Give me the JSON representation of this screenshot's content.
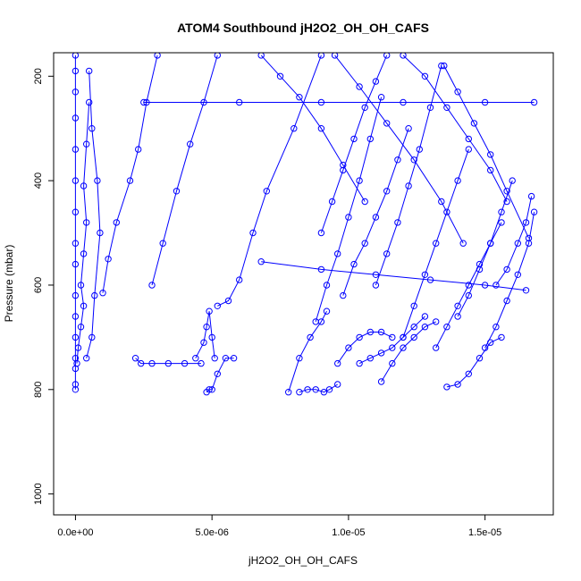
{
  "chart_data": {
    "type": "line",
    "title": "ATOM4 Southbound jH2O2_OH_OH_CAFS",
    "xlabel": "jH2O2_OH_OH_CAFS",
    "ylabel": "Pressure (mbar)",
    "xlim": [
      -8e-07,
      1.75e-05
    ],
    "ylim": [
      1040,
      155
    ],
    "y_reversed": true,
    "x_ticks": [
      0,
      5e-06,
      1e-05,
      1.5e-05
    ],
    "x_tick_labels": [
      "0.0e+00",
      "5.0e-06",
      "1.0e-05",
      "1.5e-05"
    ],
    "y_ticks": [
      200,
      400,
      600,
      800,
      1000
    ],
    "y_tick_labels": [
      "200",
      "400",
      "600",
      "800",
      "1000"
    ],
    "grid": false,
    "legend": "none",
    "color": "#0000ff",
    "marker": "open-circle",
    "series": [
      {
        "x": [
          0.0,
          0.0,
          0.0,
          0.0,
          0.0,
          0.0,
          0.0,
          0.0,
          0.0,
          0.0,
          0.0,
          0.0,
          0.0,
          0.0,
          0.0,
          0.0
        ],
        "y": [
          800,
          790,
          760,
          740,
          700,
          660,
          620,
          560,
          520,
          460,
          400,
          340,
          280,
          230,
          190,
          160
        ]
      },
      {
        "x": [
          5e-08,
          1e-07,
          2e-07,
          3e-07,
          2e-07,
          3e-07,
          4e-07,
          3e-07,
          4e-07,
          5e-07
        ],
        "y": [
          750,
          720,
          680,
          640,
          600,
          540,
          480,
          410,
          330,
          250
        ]
      },
      {
        "x": [
          4e-07,
          6e-07,
          7e-07,
          9e-07,
          8e-07,
          6e-07,
          5e-07
        ],
        "y": [
          740,
          700,
          620,
          500,
          400,
          300,
          190
        ]
      },
      {
        "x": [
          1e-06,
          1.2e-06,
          1.5e-06,
          2e-06,
          2.3e-06,
          2.6e-06,
          3e-06
        ],
        "y": [
          615,
          550,
          480,
          400,
          340,
          250,
          160
        ]
      },
      {
        "x": [
          2.2e-06,
          2.4e-06,
          2.8e-06,
          3.4e-06,
          4e-06,
          4.6e-06
        ],
        "y": [
          740,
          750,
          750,
          750,
          750,
          750
        ]
      },
      {
        "x": [
          2.8e-06,
          3.2e-06,
          3.7e-06,
          4.2e-06,
          4.7e-06,
          5.2e-06
        ],
        "y": [
          600,
          520,
          420,
          330,
          250,
          160
        ]
      },
      {
        "x": [
          4.4e-06,
          4.7e-06,
          4.8e-06,
          4.9e-06,
          5e-06,
          5.1e-06
        ],
        "y": [
          740,
          710,
          680,
          650,
          700,
          740
        ]
      },
      {
        "x": [
          4.8e-06,
          4.9e-06,
          5e-06,
          5.2e-06,
          5.5e-06,
          5.8e-06
        ],
        "y": [
          805,
          800,
          800,
          770,
          740,
          740
        ]
      },
      {
        "x": [
          5.2e-06,
          5.6e-06,
          6e-06,
          6.5e-06,
          7e-06,
          8e-06,
          9e-06
        ],
        "y": [
          640,
          630,
          590,
          500,
          420,
          300,
          160
        ]
      },
      {
        "x": [
          7.8e-06,
          8.2e-06,
          8.6e-06,
          9e-06,
          9.2e-06
        ],
        "y": [
          805,
          740,
          700,
          670,
          650
        ]
      },
      {
        "x": [
          8.2e-06,
          8.5e-06,
          8.8e-06,
          9.1e-06,
          9.3e-06,
          9.6e-06
        ],
        "y": [
          805,
          800,
          800,
          805,
          800,
          790
        ]
      },
      {
        "x": [
          8.8e-06,
          9.2e-06,
          9.6e-06,
          1e-05,
          1.04e-05,
          1.08e-05,
          1.12e-05
        ],
        "y": [
          670,
          600,
          540,
          470,
          400,
          320,
          240
        ]
      },
      {
        "x": [
          9e-06,
          9.4e-06,
          9.8e-06,
          1.02e-05,
          1.06e-05,
          1.1e-05,
          1.14e-05
        ],
        "y": [
          500,
          440,
          380,
          320,
          260,
          210,
          160
        ]
      },
      {
        "x": [
          9.6e-06,
          1e-05,
          1.04e-05,
          1.08e-05,
          1.12e-05,
          1.16e-05
        ],
        "y": [
          750,
          720,
          700,
          690,
          690,
          700
        ]
      },
      {
        "x": [
          9.8e-06,
          1.02e-05,
          1.06e-05,
          1.1e-05,
          1.14e-05,
          1.18e-05,
          1.22e-05
        ],
        "y": [
          620,
          560,
          520,
          470,
          420,
          360,
          300
        ]
      },
      {
        "x": [
          1.04e-05,
          1.08e-05,
          1.12e-05,
          1.16e-05,
          1.2e-05,
          1.24e-05,
          1.28e-05
        ],
        "y": [
          750,
          740,
          730,
          720,
          700,
          680,
          660
        ]
      },
      {
        "x": [
          1.1e-05,
          1.14e-05,
          1.18e-05,
          1.22e-05,
          1.26e-05,
          1.3e-05,
          1.34e-05
        ],
        "y": [
          600,
          540,
          480,
          410,
          340,
          260,
          180
        ]
      },
      {
        "x": [
          1.12e-05,
          1.16e-05,
          1.2e-05,
          1.24e-05,
          1.28e-05,
          1.32e-05
        ],
        "y": [
          785,
          750,
          720,
          700,
          680,
          670
        ]
      },
      {
        "x": [
          1.2e-05,
          1.24e-05,
          1.28e-05,
          1.32e-05,
          1.36e-05,
          1.4e-05,
          1.44e-05
        ],
        "y": [
          700,
          640,
          580,
          520,
          460,
          400,
          340
        ]
      },
      {
        "x": [
          1.32e-05,
          1.36e-05,
          1.4e-05,
          1.44e-05,
          1.48e-05,
          1.52e-05,
          1.56e-05
        ],
        "y": [
          720,
          680,
          640,
          600,
          560,
          520,
          480
        ]
      },
      {
        "x": [
          1.36e-05,
          1.4e-05,
          1.44e-05,
          1.48e-05,
          1.52e-05,
          1.56e-05
        ],
        "y": [
          795,
          790,
          770,
          740,
          710,
          700
        ]
      },
      {
        "x": [
          1.4e-05,
          1.44e-05,
          1.48e-05,
          1.52e-05,
          1.56e-05,
          1.6e-05
        ],
        "y": [
          660,
          620,
          570,
          520,
          460,
          400
        ]
      },
      {
        "x": [
          1.5e-05,
          1.54e-05,
          1.58e-05,
          1.62e-05,
          1.66e-05,
          1.68e-05
        ],
        "y": [
          720,
          680,
          630,
          580,
          520,
          460
        ]
      },
      {
        "x": [
          1.54e-05,
          1.58e-05,
          1.62e-05,
          1.65e-05,
          1.67e-05
        ],
        "y": [
          600,
          570,
          520,
          480,
          430
        ]
      },
      {
        "x": [
          1.2e-05,
          1.28e-05,
          1.36e-05,
          1.44e-05,
          1.52e-05,
          1.58e-05
        ],
        "y": [
          160,
          200,
          260,
          320,
          380,
          440
        ]
      },
      {
        "x": [
          1.35e-05,
          1.4e-05,
          1.46e-05,
          1.52e-05,
          1.58e-05,
          1.66e-05
        ],
        "y": [
          180,
          230,
          290,
          350,
          420,
          510
        ]
      },
      {
        "x": [
          9.5e-06,
          1.04e-05,
          1.14e-05,
          1.24e-05,
          1.34e-05,
          1.42e-05
        ],
        "y": [
          160,
          220,
          290,
          360,
          440,
          520
        ]
      },
      {
        "x": [
          6.8e-06,
          7.5e-06,
          8.2e-06,
          9e-06,
          9.8e-06,
          1.06e-05
        ],
        "y": [
          160,
          200,
          240,
          300,
          370,
          440
        ]
      },
      {
        "x": [
          2.5e-06,
          6e-06,
          9e-06,
          1.2e-05,
          1.5e-05,
          1.68e-05
        ],
        "y": [
          250,
          250,
          250,
          250,
          250,
          250
        ]
      },
      {
        "x": [
          6.8e-06,
          9e-06,
          1.1e-05,
          1.3e-05,
          1.5e-05,
          1.65e-05
        ],
        "y": [
          555,
          570,
          580,
          590,
          600,
          610
        ]
      }
    ]
  }
}
